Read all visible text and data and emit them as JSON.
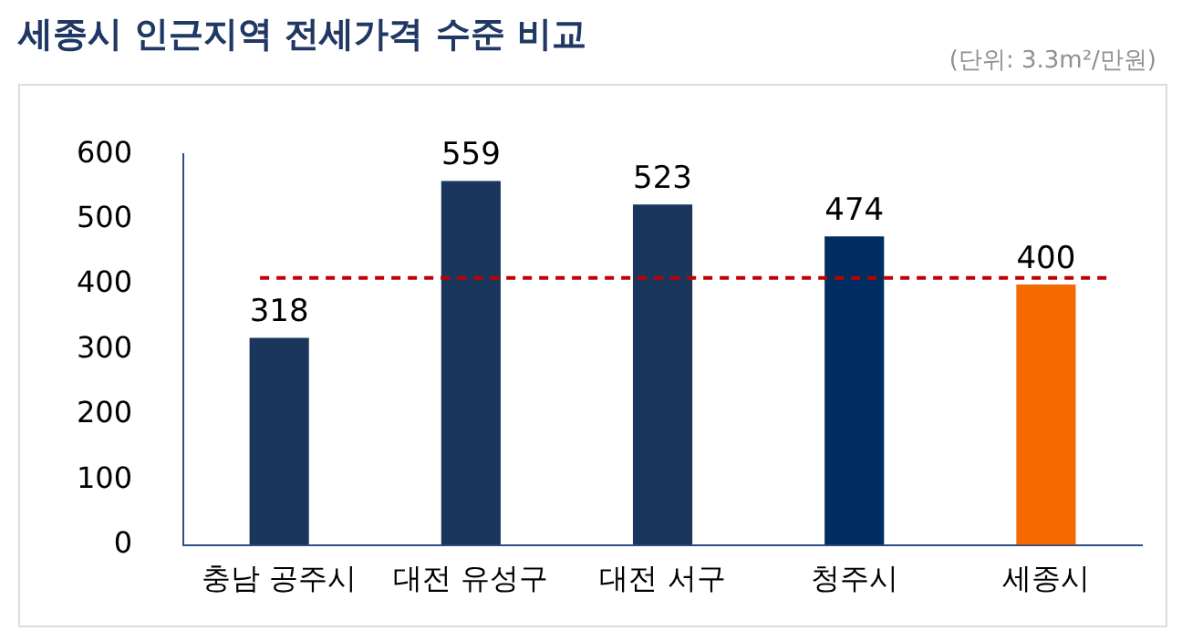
{
  "chart_data": {
    "type": "bar",
    "title": "세종시 인근지역 전세가격 수준 비교",
    "subtitle": "(단위: 3.3m²/만원)",
    "categories": [
      "충남 공주시",
      "대전 유성구",
      "대전 서구",
      "청주시",
      "세종시"
    ],
    "values": [
      318,
      559,
      523,
      474,
      400
    ],
    "colors": [
      "#1b365d",
      "#1b365d",
      "#1b365d",
      "#002d62",
      "#f56a00"
    ],
    "ylim": [
      0,
      600
    ],
    "yticks": [
      0,
      100,
      200,
      300,
      400,
      500,
      600
    ],
    "grid": false,
    "legend": false,
    "data_labels": true,
    "ref_lines": [
      {
        "axis": "y",
        "value": 410,
        "color": "#c00000",
        "line_style": "dashed"
      }
    ]
  }
}
